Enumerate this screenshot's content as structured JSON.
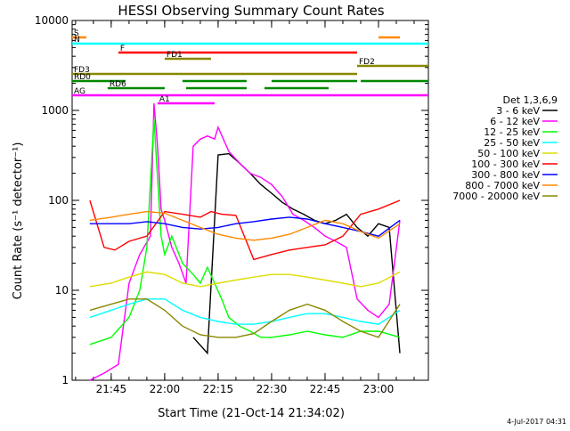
{
  "chart_data": {
    "type": "line",
    "title": "HESSI Observing Summary Count Rates",
    "xlabel": "Start Time (21-Oct-14 21:34:02)",
    "ylabel": "Count Rate (s⁻¹ detector⁻¹)",
    "y_scale": "log",
    "ylim": [
      1,
      10000
    ],
    "xlim": [
      "21:34:02",
      "23:14:00"
    ],
    "x_ticks": [
      "21:45",
      "22:00",
      "22:15",
      "22:30",
      "22:45",
      "23:00"
    ],
    "y_ticks": [
      "1",
      "10",
      "100",
      "1000",
      "10000"
    ],
    "timestamp": "4-Jul-2017 04:31",
    "legend": {
      "title": "Det 1,3,6,9",
      "placement": "right",
      "entries": [
        {
          "label": "3 - 6 keV",
          "color": "#000000"
        },
        {
          "label": "6 - 12 keV",
          "color": "#ff00ff"
        },
        {
          "label": "12 - 25 keV",
          "color": "#00ff00"
        },
        {
          "label": "25 - 50 keV",
          "color": "#00ffff"
        },
        {
          "label": "50 - 100 keV",
          "color": "#dddd00"
        },
        {
          "label": "100 - 300 keV",
          "color": "#ff0000"
        },
        {
          "label": "300 - 800 keV",
          "color": "#0000ff"
        },
        {
          "label": "800 - 7000 keV",
          "color": "#ff8800"
        },
        {
          "label": "7000 - 20000 keV",
          "color": "#888800"
        }
      ]
    },
    "series": [
      {
        "name": "3 - 6 keV",
        "color": "#000000",
        "x": [
          "22:08",
          "22:12",
          "22:15",
          "22:18",
          "22:21",
          "22:24",
          "22:27",
          "22:30",
          "22:33",
          "22:36",
          "22:39",
          "22:42",
          "22:45",
          "22:48",
          "22:51",
          "22:54",
          "22:57",
          "23:00",
          "23:03",
          "23:06"
        ],
        "y": [
          3,
          2,
          320,
          330,
          260,
          200,
          150,
          120,
          95,
          80,
          70,
          60,
          55,
          60,
          70,
          50,
          40,
          55,
          50,
          2
        ]
      },
      {
        "name": "6 - 12 keV",
        "color": "#ff00ff",
        "x": [
          "21:39",
          "21:43",
          "21:47",
          "21:50",
          "21:53",
          "21:56",
          "21:57",
          "21:58",
          "21:59",
          "22:00",
          "22:02",
          "22:04",
          "22:06",
          "22:08",
          "22:10",
          "22:12",
          "22:14",
          "22:15",
          "22:18",
          "22:21",
          "22:24",
          "22:27",
          "22:30",
          "22:33",
          "22:36",
          "22:39",
          "22:42",
          "22:45",
          "22:48",
          "22:51",
          "22:54",
          "22:57",
          "23:00",
          "23:03",
          "23:06"
        ],
        "y": [
          1,
          1.2,
          1.5,
          12,
          25,
          40,
          1200,
          400,
          80,
          60,
          30,
          20,
          12,
          400,
          480,
          520,
          480,
          650,
          350,
          260,
          200,
          180,
          150,
          110,
          70,
          60,
          50,
          40,
          35,
          30,
          8,
          6,
          5,
          7,
          60
        ]
      },
      {
        "name": "12 - 25 keV",
        "color": "#00ff00",
        "x": [
          "21:39",
          "21:45",
          "21:50",
          "21:53",
          "21:55",
          "21:57",
          "21:59",
          "22:00",
          "22:02",
          "22:05",
          "22:08",
          "22:10",
          "22:12",
          "22:14",
          "22:16",
          "22:18",
          "22:21",
          "22:24",
          "22:27",
          "22:30",
          "22:35",
          "22:40",
          "22:45",
          "22:50",
          "22:55",
          "23:00",
          "23:06"
        ],
        "y": [
          2.5,
          3,
          5,
          10,
          30,
          800,
          40,
          25,
          40,
          20,
          15,
          12,
          18,
          12,
          8,
          5,
          4,
          3.5,
          3,
          3,
          3.2,
          3.5,
          3.2,
          3,
          3.5,
          3.5,
          3
        ]
      },
      {
        "name": "25 - 50 keV",
        "color": "#00ffff",
        "x": [
          "21:39",
          "21:45",
          "21:50",
          "21:55",
          "22:00",
          "22:05",
          "22:10",
          "22:15",
          "22:20",
          "22:25",
          "22:30",
          "22:35",
          "22:40",
          "22:45",
          "22:50",
          "22:55",
          "23:00",
          "23:06"
        ],
        "y": [
          5,
          6,
          7,
          8,
          8,
          6,
          5,
          4.5,
          4.2,
          4.2,
          4.5,
          5,
          5.5,
          5.5,
          5,
          4.5,
          4.2,
          6
        ]
      },
      {
        "name": "50 - 100 keV",
        "color": "#dddd00",
        "x": [
          "21:39",
          "21:45",
          "21:50",
          "21:55",
          "22:00",
          "22:05",
          "22:10",
          "22:15",
          "22:20",
          "22:25",
          "22:30",
          "22:35",
          "22:40",
          "22:45",
          "22:50",
          "22:55",
          "23:00",
          "23:06"
        ],
        "y": [
          11,
          12,
          14,
          16,
          15,
          12,
          11,
          12,
          13,
          14,
          15,
          15,
          14,
          13,
          12,
          11,
          12,
          16
        ]
      },
      {
        "name": "100 - 300 keV",
        "color": "#ff0000",
        "x": [
          "21:39",
          "21:43",
          "21:46",
          "21:50",
          "21:55",
          "22:00",
          "22:05",
          "22:10",
          "22:13",
          "22:16",
          "22:20",
          "22:25",
          "22:30",
          "22:35",
          "22:40",
          "22:45",
          "22:50",
          "22:55",
          "23:00",
          "23:06"
        ],
        "y": [
          100,
          30,
          28,
          35,
          40,
          75,
          70,
          65,
          75,
          70,
          68,
          22,
          25,
          28,
          30,
          32,
          40,
          70,
          80,
          100
        ]
      },
      {
        "name": "300 - 800 keV",
        "color": "#0000ff",
        "x": [
          "21:39",
          "21:45",
          "21:50",
          "21:55",
          "22:00",
          "22:05",
          "22:10",
          "22:15",
          "22:20",
          "22:25",
          "22:30",
          "22:35",
          "22:40",
          "22:45",
          "22:50",
          "22:55",
          "23:00",
          "23:06"
        ],
        "y": [
          55,
          55,
          55,
          58,
          55,
          50,
          48,
          50,
          55,
          58,
          62,
          65,
          62,
          55,
          50,
          45,
          40,
          60
        ]
      },
      {
        "name": "800 - 7000 keV",
        "color": "#ff8800",
        "x": [
          "21:39",
          "21:45",
          "21:50",
          "21:55",
          "22:00",
          "22:05",
          "22:10",
          "22:15",
          "22:20",
          "22:25",
          "22:30",
          "22:35",
          "22:40",
          "22:45",
          "22:50",
          "22:55",
          "23:00",
          "23:06"
        ],
        "y": [
          60,
          65,
          70,
          75,
          72,
          60,
          50,
          42,
          38,
          36,
          38,
          42,
          50,
          60,
          55,
          45,
          38,
          55
        ]
      },
      {
        "name": "7000 - 20000 keV",
        "color": "#888800",
        "x": [
          "21:39",
          "21:45",
          "21:50",
          "21:55",
          "22:00",
          "22:05",
          "22:10",
          "22:15",
          "22:20",
          "22:25",
          "22:30",
          "22:35",
          "22:40",
          "22:45",
          "22:50",
          "22:55",
          "23:00",
          "23:06"
        ],
        "y": [
          6,
          7,
          8,
          8,
          6,
          4,
          3.2,
          3,
          3,
          3.3,
          4.5,
          6,
          7,
          6,
          4.5,
          3.5,
          3,
          7
        ]
      }
    ],
    "state_bars": [
      {
        "label": "S",
        "color": "#ff8800",
        "segments": [
          [
            "21:34:02",
            "21:38"
          ],
          [
            "23:00",
            "23:06"
          ]
        ]
      },
      {
        "label": "N",
        "color": "#00ffff",
        "segments": [
          [
            "21:34:02",
            "23:14:00"
          ]
        ]
      },
      {
        "label": "F",
        "color": "#ff0000",
        "segments": [
          [
            "21:47",
            "22:54"
          ]
        ]
      },
      {
        "label": "FD1",
        "color": "#888800",
        "segments": [
          [
            "22:00",
            "22:13"
          ]
        ]
      },
      {
        "label": "FD2",
        "color": "#888800",
        "segments": [
          [
            "22:54",
            "23:14:00"
          ]
        ]
      },
      {
        "label": "FD3",
        "color": "#888800",
        "segments": [
          [
            "21:34:02",
            "22:54"
          ]
        ]
      },
      {
        "label": "RD0",
        "color": "#008800",
        "segments": [
          [
            "21:34:02",
            "21:49"
          ],
          [
            "22:05",
            "22:23"
          ],
          [
            "22:30",
            "22:54"
          ],
          [
            "22:55",
            "23:14:00"
          ]
        ]
      },
      {
        "label": "RD6",
        "color": "#008800",
        "segments": [
          [
            "21:44",
            "22:00"
          ],
          [
            "22:06",
            "22:23"
          ],
          [
            "22:28",
            "22:46"
          ]
        ]
      },
      {
        "label": "AG",
        "color": "#ff00ff",
        "segments": [
          [
            "21:34:02",
            "23:14:00"
          ]
        ]
      },
      {
        "label": "A1",
        "color": "#ff00ff",
        "segments": [
          [
            "21:58",
            "22:14"
          ]
        ]
      }
    ]
  }
}
